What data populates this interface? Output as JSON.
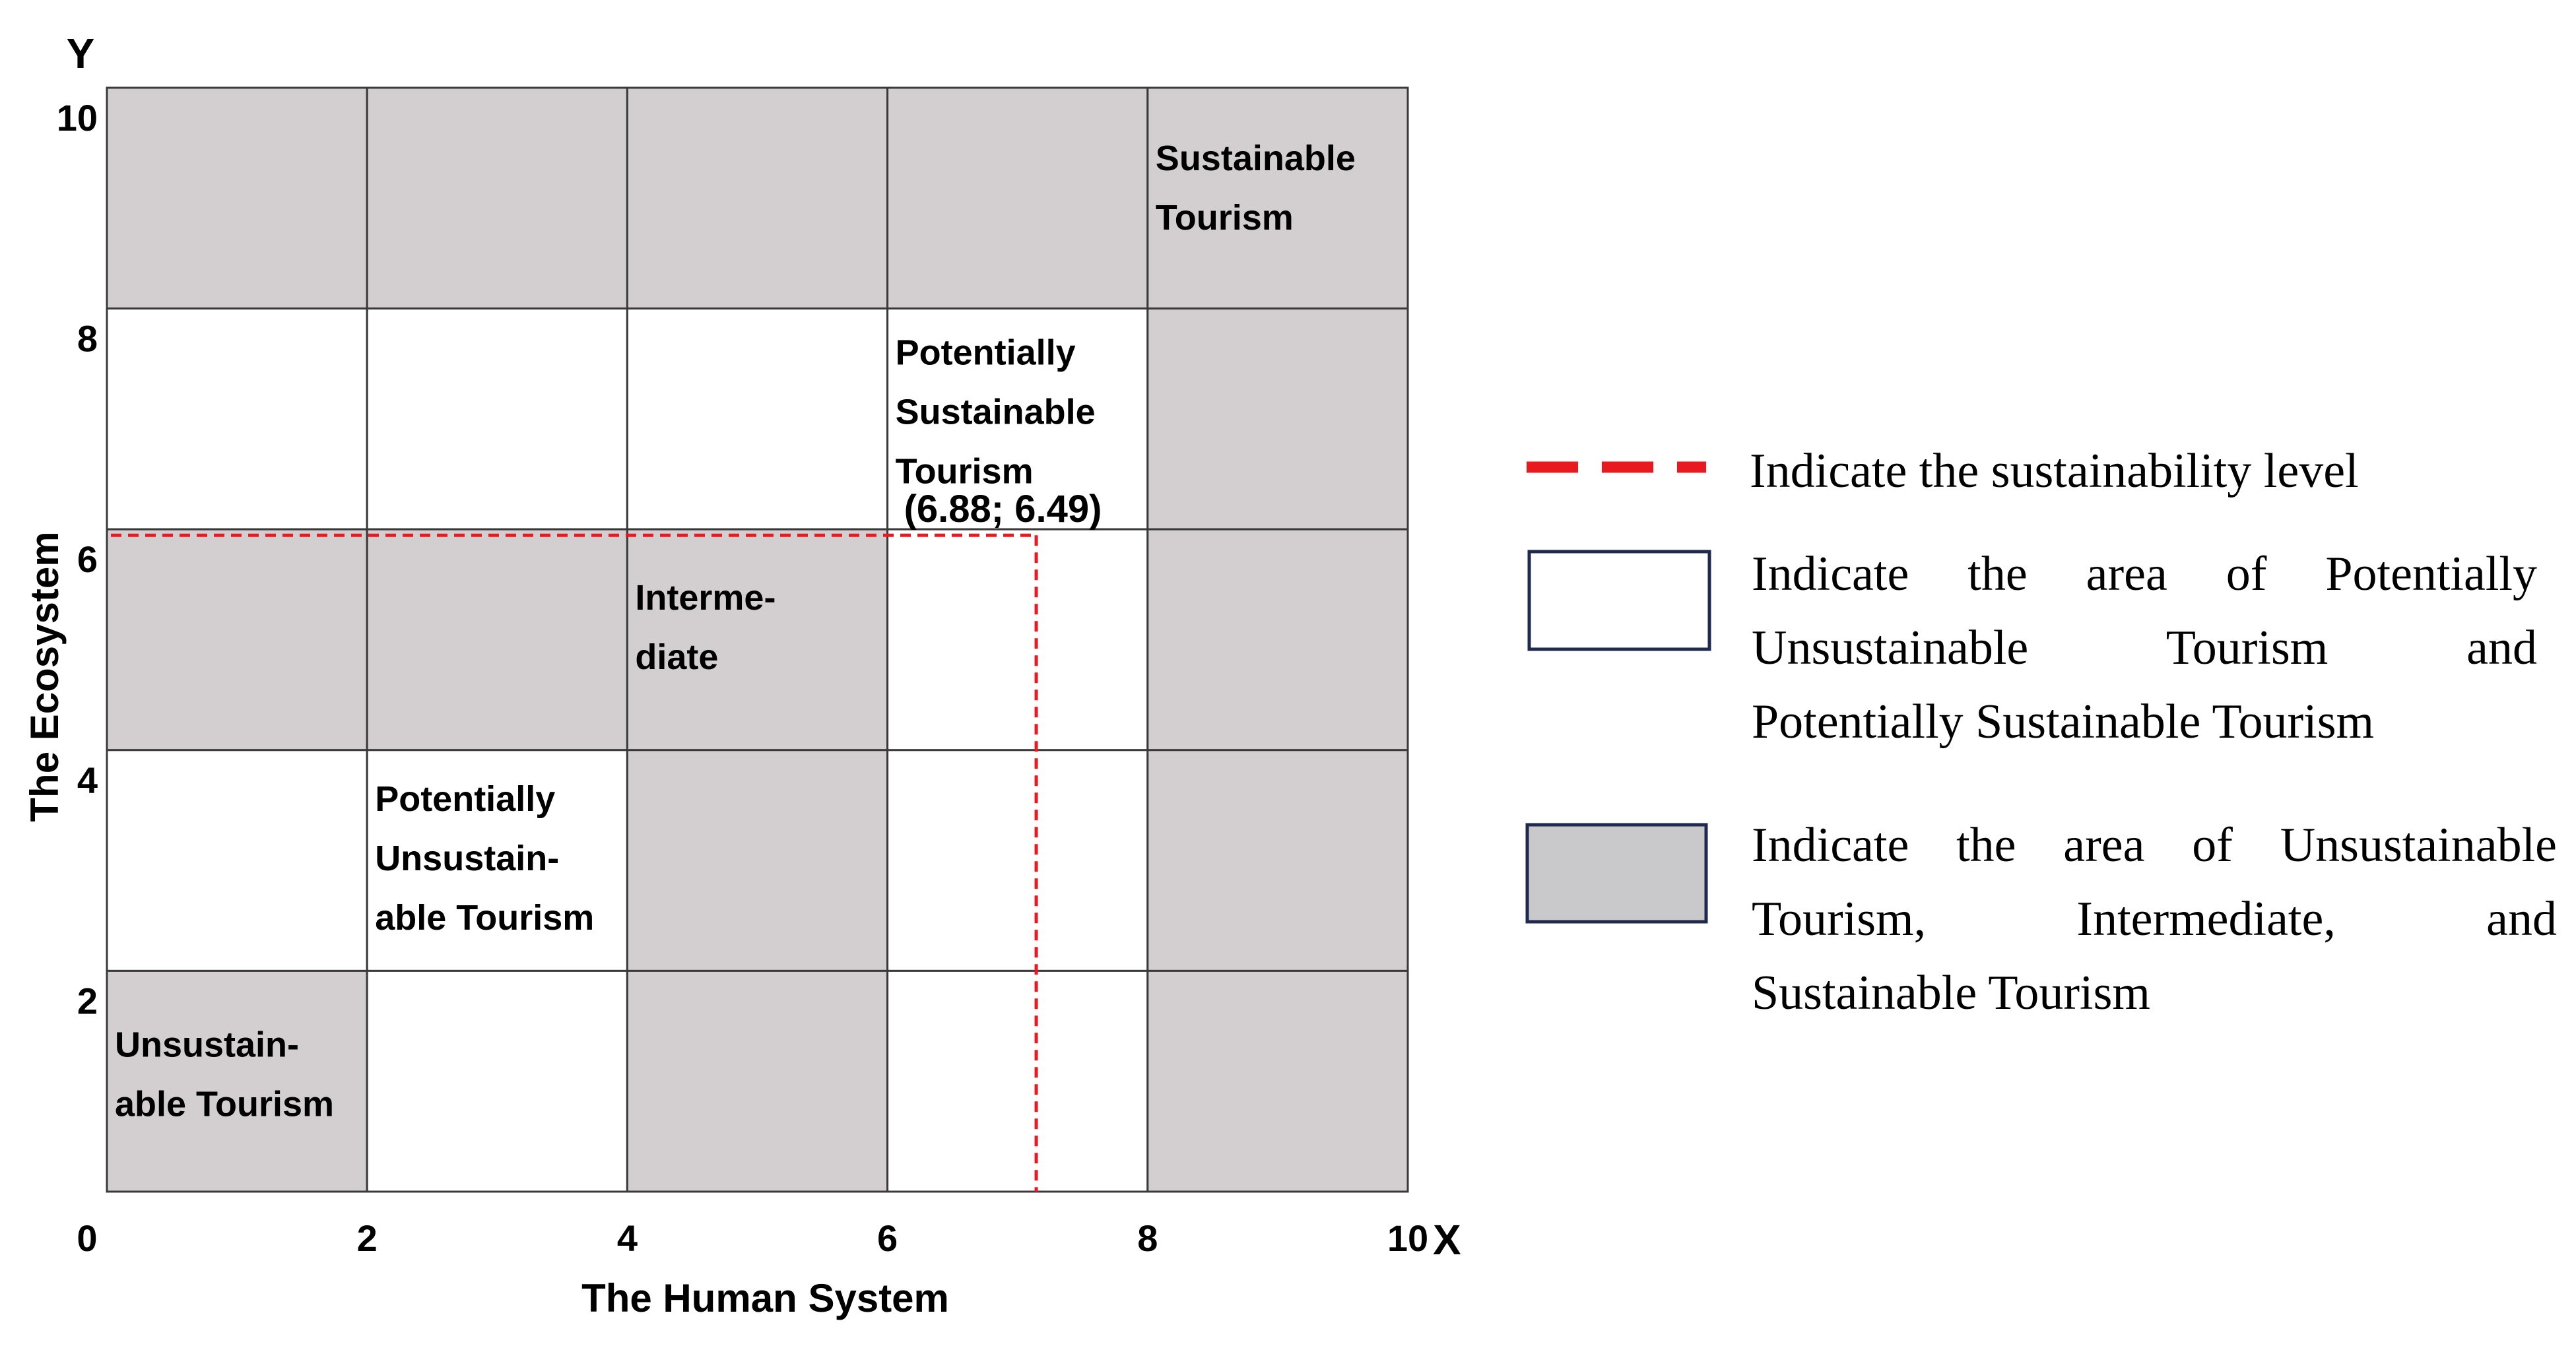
{
  "chart_data": {
    "type": "quadrant-grid",
    "x_axis": {
      "label": "The Human System",
      "symbol": "X",
      "ticks": [
        "0",
        "2",
        "4",
        "6",
        "8",
        "10"
      ],
      "range": [
        0,
        10
      ]
    },
    "y_axis": {
      "label": "The Ecosystem",
      "symbol": "Y",
      "ticks": [
        "2",
        "4",
        "6",
        "8",
        "10"
      ],
      "range": [
        0,
        10
      ]
    },
    "zones": {
      "unsustainable": {
        "lines": [
          "Unsustain-",
          "able Tourism"
        ]
      },
      "potentially_unsustainable": {
        "lines": [
          "Potentially",
          "Unsustain-",
          "able Tourism"
        ]
      },
      "intermediate": {
        "lines": [
          "Interme-",
          "diate"
        ]
      },
      "potentially_sustainable": {
        "lines": [
          "Potentially",
          "Sustainable",
          "Tourism"
        ]
      },
      "sustainable": {
        "lines": [
          "Sustainable",
          "Tourism"
        ]
      }
    },
    "shading": [
      [
        "gray",
        "gray",
        "gray",
        "gray",
        "gray"
      ],
      [
        "white",
        "white",
        "white",
        "white",
        "gray"
      ],
      [
        "gray",
        "gray",
        "gray",
        "white",
        "gray"
      ],
      [
        "white",
        "white",
        "gray",
        "white",
        "gray"
      ],
      [
        "gray",
        "white",
        "gray",
        "white",
        "gray"
      ]
    ],
    "point": {
      "x": 6.88,
      "y": 6.49,
      "label": "(6.88; 6.49)"
    },
    "grid": true
  },
  "legend": {
    "items": [
      {
        "type": "dashed-line",
        "color": "#e8191f",
        "text": "Indicate the sustainability level"
      },
      {
        "type": "box",
        "fill": "#ffffff",
        "border": "#1f2a4e",
        "lines": [
          "Indicate the area of Potentially",
          "Unsustainable Tourism and",
          "Potentially Sustainable Tourism"
        ]
      },
      {
        "type": "box",
        "fill": "#c9c9cb",
        "border": "#1f2a4e",
        "lines": [
          "Indicate the area of Unsustainable",
          "Tourism, Intermediate, and",
          "Sustainable Tourism"
        ]
      }
    ]
  },
  "colors": {
    "gray_cell": "#d3cfd0",
    "grid_line": "#3a3a3a",
    "indicator": "#e8191f",
    "legend_gray": "#c9c9cb",
    "legend_border": "#1f2a4e"
  }
}
